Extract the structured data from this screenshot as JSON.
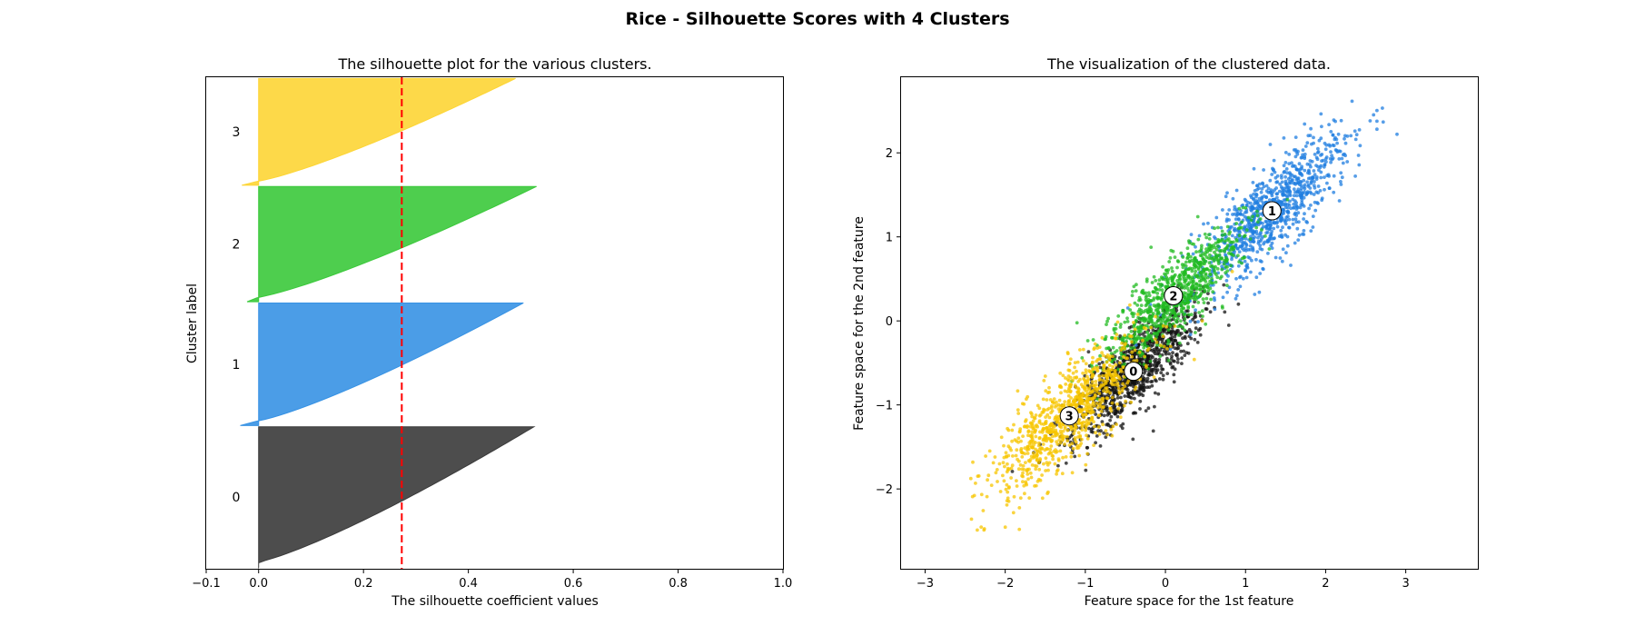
{
  "figure": {
    "suptitle": "Rice - Silhouette Scores with 4 Clusters"
  },
  "chart_data": [
    {
      "type": "area",
      "title": "The silhouette plot for the various clusters.",
      "xlabel": "The silhouette coefficient values",
      "ylabel": "Cluster label",
      "xlim": [
        -0.1,
        1.0
      ],
      "xticks": [
        "−0.1",
        "0.0",
        "0.2",
        "0.4",
        "0.6",
        "0.8",
        "1.0"
      ],
      "xtick_values": [
        -0.1,
        0.0,
        0.2,
        0.4,
        0.6,
        0.8,
        1.0
      ],
      "average_silhouette": 0.273,
      "clusters": [
        {
          "label": "0",
          "color": "#3a3a3a",
          "size": 1160,
          "min": 0.0,
          "max": 0.525
        },
        {
          "label": "1",
          "color": "#3792e4",
          "size": 1010,
          "min": -0.035,
          "max": 0.505
        },
        {
          "label": "2",
          "color": "#3bc93b",
          "size": 950,
          "min": -0.022,
          "max": 0.53
        },
        {
          "label": "3",
          "color": "#fdd535",
          "size": 880,
          "min": -0.032,
          "max": 0.49
        }
      ]
    },
    {
      "type": "scatter",
      "title": "The visualization of the clustered data.",
      "xlabel": "Feature space for the 1st feature",
      "ylabel": "Feature space for the 2nd feature",
      "xlim": [
        -3.3,
        3.9
      ],
      "ylim": [
        -2.95,
        2.9
      ],
      "xticks": [
        "−3",
        "−2",
        "−1",
        "0",
        "1",
        "2",
        "3"
      ],
      "xtick_values": [
        -3,
        -2,
        -1,
        0,
        1,
        2,
        3
      ],
      "yticks": [
        "−2",
        "−1",
        "0",
        "1",
        "2"
      ],
      "ytick_values": [
        -2,
        -1,
        0,
        1,
        2
      ],
      "centers": [
        {
          "label": "0",
          "x": -0.4,
          "y": -0.6
        },
        {
          "label": "1",
          "x": 1.33,
          "y": 1.31
        },
        {
          "label": "2",
          "x": 0.1,
          "y": 0.3
        },
        {
          "label": "3",
          "x": -1.2,
          "y": -1.13
        }
      ],
      "series": [
        {
          "color": "#111111",
          "center_x": -0.4,
          "center_y": -0.6,
          "spread_major": 0.55,
          "spread_minor": 0.17,
          "count": 950
        },
        {
          "color": "#1f7de0",
          "center_x": 1.33,
          "center_y": 1.31,
          "spread_major": 0.62,
          "spread_minor": 0.2,
          "count": 900
        },
        {
          "color": "#22bb22",
          "center_x": 0.1,
          "center_y": 0.3,
          "spread_major": 0.55,
          "spread_minor": 0.17,
          "count": 850
        },
        {
          "color": "#f7c600",
          "center_x": -1.2,
          "center_y": -1.13,
          "spread_major": 0.62,
          "spread_minor": 0.2,
          "count": 900
        }
      ]
    }
  ]
}
